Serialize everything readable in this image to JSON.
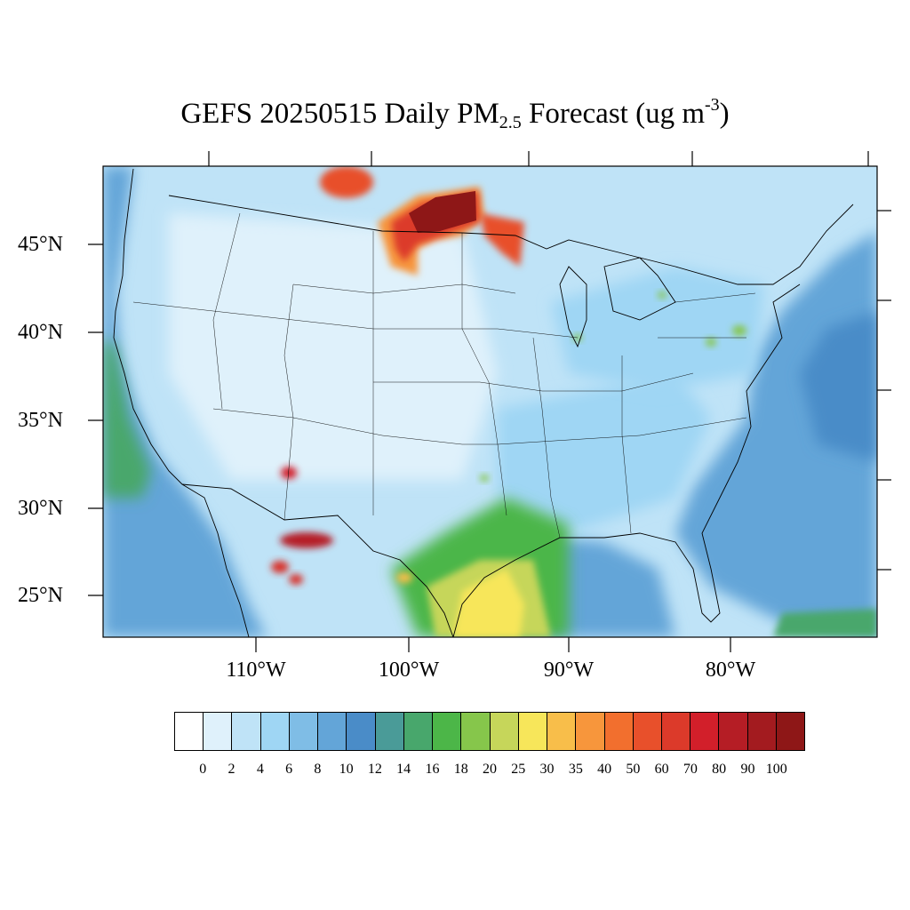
{
  "title": {
    "main": "GEFS 20250515 Daily PM",
    "sub": "2.5",
    "mid": " Forecast (ug m",
    "sup": "-3",
    "end": ")"
  },
  "map": {
    "lon_range": [
      -119,
      -71
    ],
    "lat_range": [
      22.7,
      49.4
    ],
    "background_color": "#bfe3f7",
    "ocean_color": "#5ba3d9",
    "latitude_labels": [
      "45°N",
      "40°N",
      "35°N",
      "30°N",
      "25°N"
    ],
    "longitude_labels": [
      "110°W",
      "100°W",
      "90°W",
      "80°W"
    ]
  },
  "colorbar": {
    "colors": [
      "#ffffff",
      "#dff1fb",
      "#bfe3f7",
      "#9fd6f4",
      "#7fbde6",
      "#63a5d8",
      "#4a8cc8",
      "#4a9b98",
      "#48a76c",
      "#4cb648",
      "#86c64b",
      "#c6d65a",
      "#f7e65a",
      "#f8be4a",
      "#f7963c",
      "#f26f2e",
      "#e8502b",
      "#dc3a2a",
      "#d21f2a",
      "#b51d25",
      "#a31b1f",
      "#8e1717"
    ],
    "labels": [
      "0",
      "2",
      "4",
      "6",
      "8",
      "10",
      "12",
      "14",
      "16",
      "18",
      "20",
      "25",
      "30",
      "35",
      "40",
      "50",
      "60",
      "70",
      "80",
      "90",
      "100"
    ]
  },
  "hotspots": [
    {
      "name": "Minnesota-Canada border smoke",
      "color": "#9e1a1c",
      "lon": -97.5,
      "lat": 46.9
    },
    {
      "name": "Northern Ontario smoke",
      "color": "#d52a28",
      "lon": -94.3,
      "lat": 45.5
    },
    {
      "name": "Southern Manitoba smoke",
      "color": "#e04a2a",
      "lon": -104.5,
      "lat": 48.8
    },
    {
      "name": "Chihuahua fire",
      "color": "#b51d25",
      "lon": -106.5,
      "lat": 28.1
    },
    {
      "name": "Sonora fire",
      "color": "#d52a28",
      "lon": -108.5,
      "lat": 26.6
    },
    {
      "name": "Arizona fire",
      "color": "#d8322a",
      "lon": -109.6,
      "lat": 31.9
    },
    {
      "name": "South Texas dust",
      "color": "#f8e05a",
      "lon": -97.0,
      "lat": 24.5
    }
  ]
}
